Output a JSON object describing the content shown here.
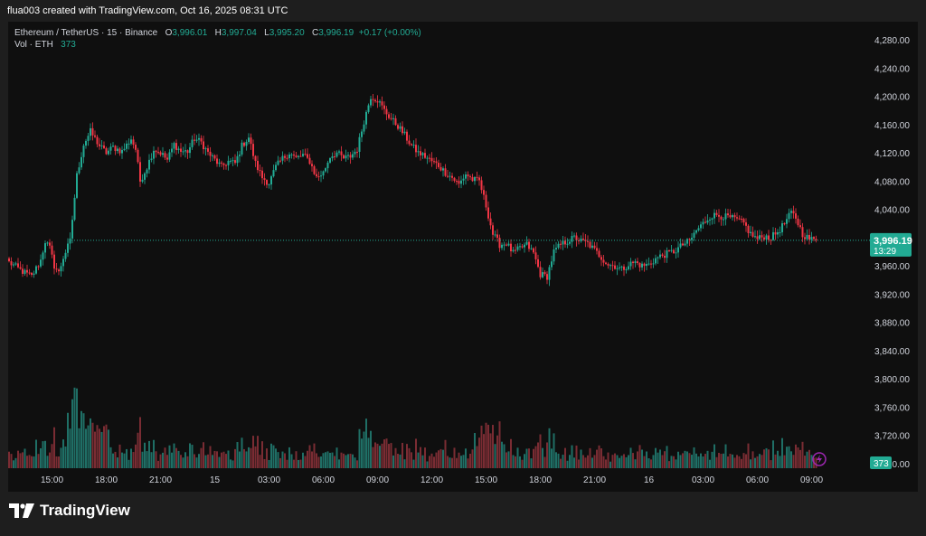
{
  "header": {
    "text": "flua003 created with TradingView.com, Oct 16, 2025 08:31 UTC"
  },
  "legend": {
    "symbol": "Ethereum / TetherUS · 15 · Binance",
    "o_label": "O",
    "o_value": "3,996.01",
    "h_label": "H",
    "h_value": "3,997.04",
    "l_label": "L",
    "l_value": "3,995.20",
    "c_label": "C",
    "c_value": "3,996.19",
    "change": "+0.17 (+0.00%)",
    "vol_label": "Vol · ETH",
    "vol_value": "373"
  },
  "price_badge": {
    "value": "3,996.19",
    "countdown": "13:29"
  },
  "volume_badge": {
    "value": "373"
  },
  "logo": {
    "text": "TradingView",
    "icon": "tradingview-logo-icon"
  },
  "alert_icon": "lightning-icon",
  "colors": {
    "up": "#22ab94",
    "down": "#f23645",
    "up_vol": "#1f6f66",
    "down_vol": "#7a2c33",
    "background": "#0f0f0f"
  },
  "chart_data": {
    "type": "candlestick",
    "price_axis": {
      "ticks": [
        "4,280.00",
        "4,240.00",
        "4,200.00",
        "4,160.00",
        "4,120.00",
        "4,080.00",
        "4,040.00",
        "3,960.00",
        "3,920.00",
        "3,880.00",
        "3,840.00",
        "3,800.00",
        "3,760.00",
        "3,720.00",
        "3,680.00"
      ],
      "tick_values": [
        4280,
        4240,
        4200,
        4160,
        4120,
        4080,
        4040,
        3960,
        3920,
        3880,
        3840,
        3800,
        3760,
        3720,
        3680
      ],
      "ylim": [
        3680,
        4290
      ]
    },
    "time_axis": {
      "labels": [
        "15:00",
        "18:00",
        "21:00",
        "15",
        "03:00",
        "06:00",
        "09:00",
        "12:00",
        "15:00",
        "18:00",
        "21:00",
        "16",
        "03:00",
        "06:00",
        "09:00"
      ],
      "label_bar_index": [
        19,
        43,
        67,
        91,
        115,
        139,
        163,
        187,
        211,
        235,
        259,
        283,
        307,
        331,
        355
      ]
    },
    "last_price": 3996.19,
    "grid": false,
    "volume_overlay": true,
    "anchors": [
      [
        0,
        3965
      ],
      [
        6,
        3952
      ],
      [
        10,
        3945
      ],
      [
        14,
        3968
      ],
      [
        16,
        3995
      ],
      [
        18,
        3985
      ],
      [
        20,
        3960
      ],
      [
        22,
        3950
      ],
      [
        24,
        3972
      ],
      [
        27,
        3995
      ],
      [
        30,
        4088
      ],
      [
        33,
        4132
      ],
      [
        36,
        4150
      ],
      [
        40,
        4130
      ],
      [
        43,
        4120
      ],
      [
        46,
        4128
      ],
      [
        50,
        4122
      ],
      [
        54,
        4140
      ],
      [
        56,
        4125
      ],
      [
        58,
        4080
      ],
      [
        61,
        4100
      ],
      [
        64,
        4125
      ],
      [
        67,
        4120
      ],
      [
        70,
        4110
      ],
      [
        73,
        4132
      ],
      [
        76,
        4122
      ],
      [
        79,
        4122
      ],
      [
        82,
        4140
      ],
      [
        85,
        4135
      ],
      [
        88,
        4120
      ],
      [
        91,
        4110
      ],
      [
        94,
        4100
      ],
      [
        97,
        4108
      ],
      [
        100,
        4105
      ],
      [
        103,
        4130
      ],
      [
        106,
        4142
      ],
      [
        109,
        4105
      ],
      [
        112,
        4085
      ],
      [
        115,
        4077
      ],
      [
        118,
        4100
      ],
      [
        121,
        4112
      ],
      [
        124,
        4120
      ],
      [
        127,
        4112
      ],
      [
        130,
        4117
      ],
      [
        133,
        4108
      ],
      [
        136,
        4085
      ],
      [
        139,
        4092
      ],
      [
        142,
        4115
      ],
      [
        145,
        4120
      ],
      [
        148,
        4112
      ],
      [
        151,
        4115
      ],
      [
        154,
        4125
      ],
      [
        157,
        4165
      ],
      [
        160,
        4200
      ],
      [
        163,
        4195
      ],
      [
        166,
        4180
      ],
      [
        169,
        4168
      ],
      [
        172,
        4158
      ],
      [
        175,
        4145
      ],
      [
        178,
        4130
      ],
      [
        181,
        4120
      ],
      [
        184,
        4115
      ],
      [
        187,
        4108
      ],
      [
        190,
        4102
      ],
      [
        193,
        4092
      ],
      [
        196,
        4085
      ],
      [
        199,
        4075
      ],
      [
        202,
        4090
      ],
      [
        205,
        4082
      ],
      [
        208,
        4080
      ],
      [
        211,
        4045
      ],
      [
        214,
        4005
      ],
      [
        217,
        3990
      ],
      [
        220,
        3992
      ],
      [
        223,
        3978
      ],
      [
        226,
        3985
      ],
      [
        229,
        3990
      ],
      [
        232,
        3978
      ],
      [
        235,
        3948
      ],
      [
        238,
        3945
      ],
      [
        241,
        3980
      ],
      [
        244,
        3990
      ],
      [
        247,
        3995
      ],
      [
        250,
        4000
      ],
      [
        253,
        3995
      ],
      [
        256,
        3992
      ],
      [
        259,
        3982
      ],
      [
        262,
        3972
      ],
      [
        265,
        3962
      ],
      [
        268,
        3960
      ],
      [
        271,
        3955
      ],
      [
        274,
        3962
      ],
      [
        277,
        3965
      ],
      [
        280,
        3960
      ],
      [
        283,
        3962
      ],
      [
        286,
        3970
      ],
      [
        289,
        3975
      ],
      [
        292,
        3978
      ],
      [
        295,
        3982
      ],
      [
        298,
        3990
      ],
      [
        301,
        3995
      ],
      [
        304,
        4010
      ],
      [
        307,
        4020
      ],
      [
        310,
        4030
      ],
      [
        313,
        4032
      ],
      [
        316,
        4030
      ],
      [
        319,
        4028
      ],
      [
        322,
        4025
      ],
      [
        325,
        4020
      ],
      [
        328,
        4005
      ],
      [
        331,
        3998
      ],
      [
        334,
        4002
      ],
      [
        337,
        4000
      ],
      [
        340,
        4008
      ],
      [
        343,
        4020
      ],
      [
        346,
        4035
      ],
      [
        348,
        4028
      ],
      [
        351,
        4005
      ],
      [
        354,
        3998
      ],
      [
        357,
        3996
      ]
    ],
    "volume": {
      "ylim": [
        0,
        140
      ],
      "baseline": 3680,
      "peak_value": 373
    }
  }
}
